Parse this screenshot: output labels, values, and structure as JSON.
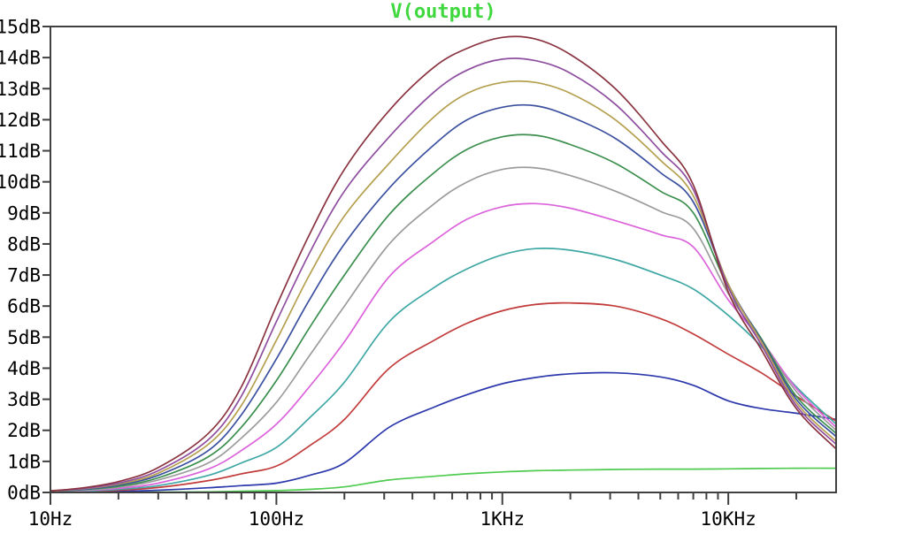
{
  "chart_data": {
    "type": "line",
    "title": "V(output)",
    "title_color": "#3FD83F",
    "frame_color": "#404040",
    "background_color": "#FFFFFF",
    "grid": false,
    "legend": "none",
    "x_axis": {
      "scale": "log",
      "unit": "Hz",
      "min_hz": 10,
      "max_hz": 30000,
      "major_ticks": [
        {
          "hz": 10,
          "label": "10Hz"
        },
        {
          "hz": 100,
          "label": "100Hz"
        },
        {
          "hz": 1000,
          "label": "1KHz"
        },
        {
          "hz": 10000,
          "label": "10KHz"
        }
      ]
    },
    "y_axis": {
      "unit": "dB",
      "min_db": 0,
      "max_db": 15,
      "step_db": 1,
      "labels": [
        "0dB",
        "1dB",
        "2dB",
        "3dB",
        "4dB",
        "5dB",
        "6dB",
        "7dB",
        "8dB",
        "9dB",
        "10dB",
        "11dB",
        "12dB",
        "13dB",
        "14dB",
        "15dB"
      ]
    },
    "frequencies_hz": [
      10,
      14,
      20,
      30,
      50,
      70,
      100,
      140,
      200,
      316,
      500,
      700,
      1000,
      1400,
      2000,
      3160,
      5000,
      7000,
      10000,
      14000,
      20000,
      30000
    ],
    "series": [
      {
        "id": "trace-1",
        "color": "#4FCB4F",
        "peak_db": 0.78,
        "values_db": [
          0.0,
          0.0,
          0.01,
          0.01,
          0.02,
          0.04,
          0.06,
          0.1,
          0.18,
          0.4,
          0.52,
          0.6,
          0.66,
          0.7,
          0.72,
          0.74,
          0.75,
          0.75,
          0.76,
          0.77,
          0.78,
          0.78
        ]
      },
      {
        "id": "trace-2",
        "color": "#2C38AC",
        "peak_db": 3.85,
        "values_db": [
          0.0,
          0.01,
          0.03,
          0.07,
          0.15,
          0.22,
          0.3,
          0.55,
          0.95,
          2.1,
          2.75,
          3.15,
          3.5,
          3.7,
          3.82,
          3.85,
          3.72,
          3.45,
          2.95,
          2.7,
          2.55,
          2.35
        ]
      },
      {
        "id": "trace-3",
        "color": "#C23B3B",
        "peak_db": 6.1,
        "values_db": [
          0.01,
          0.03,
          0.07,
          0.16,
          0.38,
          0.6,
          0.85,
          1.5,
          2.35,
          4.0,
          4.9,
          5.45,
          5.85,
          6.05,
          6.1,
          6.0,
          5.6,
          5.1,
          4.45,
          3.85,
          3.1,
          2.3
        ]
      },
      {
        "id": "trace-4",
        "color": "#3FA8A5",
        "peak_db": 7.85,
        "values_db": [
          0.02,
          0.04,
          0.1,
          0.22,
          0.55,
          0.95,
          1.45,
          2.4,
          3.55,
          5.5,
          6.6,
          7.2,
          7.65,
          7.85,
          7.8,
          7.5,
          7.0,
          6.55,
          5.7,
          4.7,
          3.4,
          2.2
        ]
      },
      {
        "id": "trace-5",
        "color": "#DB63DB",
        "peak_db": 9.3,
        "values_db": [
          0.02,
          0.06,
          0.13,
          0.3,
          0.75,
          1.35,
          2.2,
          3.4,
          4.85,
          6.95,
          8.1,
          8.8,
          9.2,
          9.3,
          9.15,
          8.75,
          8.3,
          7.9,
          6.2,
          4.9,
          3.35,
          2.1
        ]
      },
      {
        "id": "trace-6",
        "color": "#9C9C9C",
        "peak_db": 10.45,
        "values_db": [
          0.03,
          0.07,
          0.17,
          0.4,
          0.95,
          1.75,
          2.9,
          4.4,
          6.0,
          8.0,
          9.3,
          10.0,
          10.4,
          10.45,
          10.2,
          9.7,
          9.05,
          8.5,
          6.4,
          4.9,
          3.25,
          2.0
        ]
      },
      {
        "id": "trace-7",
        "color": "#3B8F4E",
        "peak_db": 11.5,
        "values_db": [
          0.03,
          0.09,
          0.2,
          0.47,
          1.15,
          2.1,
          3.6,
          5.3,
          7.0,
          8.95,
          10.3,
          11.05,
          11.45,
          11.5,
          11.2,
          10.6,
          9.7,
          9.0,
          6.6,
          4.95,
          3.1,
          1.9
        ]
      },
      {
        "id": "trace-8",
        "color": "#3C50A0",
        "peak_db": 12.45,
        "values_db": [
          0.04,
          0.1,
          0.24,
          0.55,
          1.35,
          2.5,
          4.3,
          6.2,
          8.0,
          9.8,
          11.2,
          12.0,
          12.4,
          12.45,
          12.1,
          11.4,
          10.3,
          9.35,
          6.7,
          4.9,
          3.0,
          1.8
        ]
      },
      {
        "id": "trace-9",
        "color": "#B5A050",
        "peak_db": 13.25,
        "values_db": [
          0.04,
          0.12,
          0.27,
          0.62,
          1.55,
          2.8,
          4.9,
          7.0,
          8.9,
          10.6,
          12.1,
          12.85,
          13.2,
          13.2,
          12.85,
          12.0,
          10.7,
          9.55,
          6.7,
          4.85,
          2.9,
          1.65
        ]
      },
      {
        "id": "trace-10",
        "color": "#8F4FA0",
        "peak_db": 13.95,
        "values_db": [
          0.05,
          0.13,
          0.3,
          0.7,
          1.7,
          3.1,
          5.5,
          7.7,
          9.7,
          11.45,
          12.9,
          13.6,
          13.95,
          13.9,
          13.5,
          12.5,
          11.0,
          9.75,
          6.6,
          4.75,
          2.8,
          1.55
        ]
      },
      {
        "id": "trace-11",
        "color": "#8A3440",
        "peak_db": 14.65,
        "values_db": [
          0.05,
          0.15,
          0.35,
          0.8,
          1.9,
          3.4,
          6.0,
          8.3,
          10.4,
          12.3,
          13.7,
          14.3,
          14.65,
          14.6,
          14.1,
          13.0,
          11.35,
          9.9,
          6.45,
          4.6,
          2.7,
          1.4
        ]
      }
    ]
  }
}
